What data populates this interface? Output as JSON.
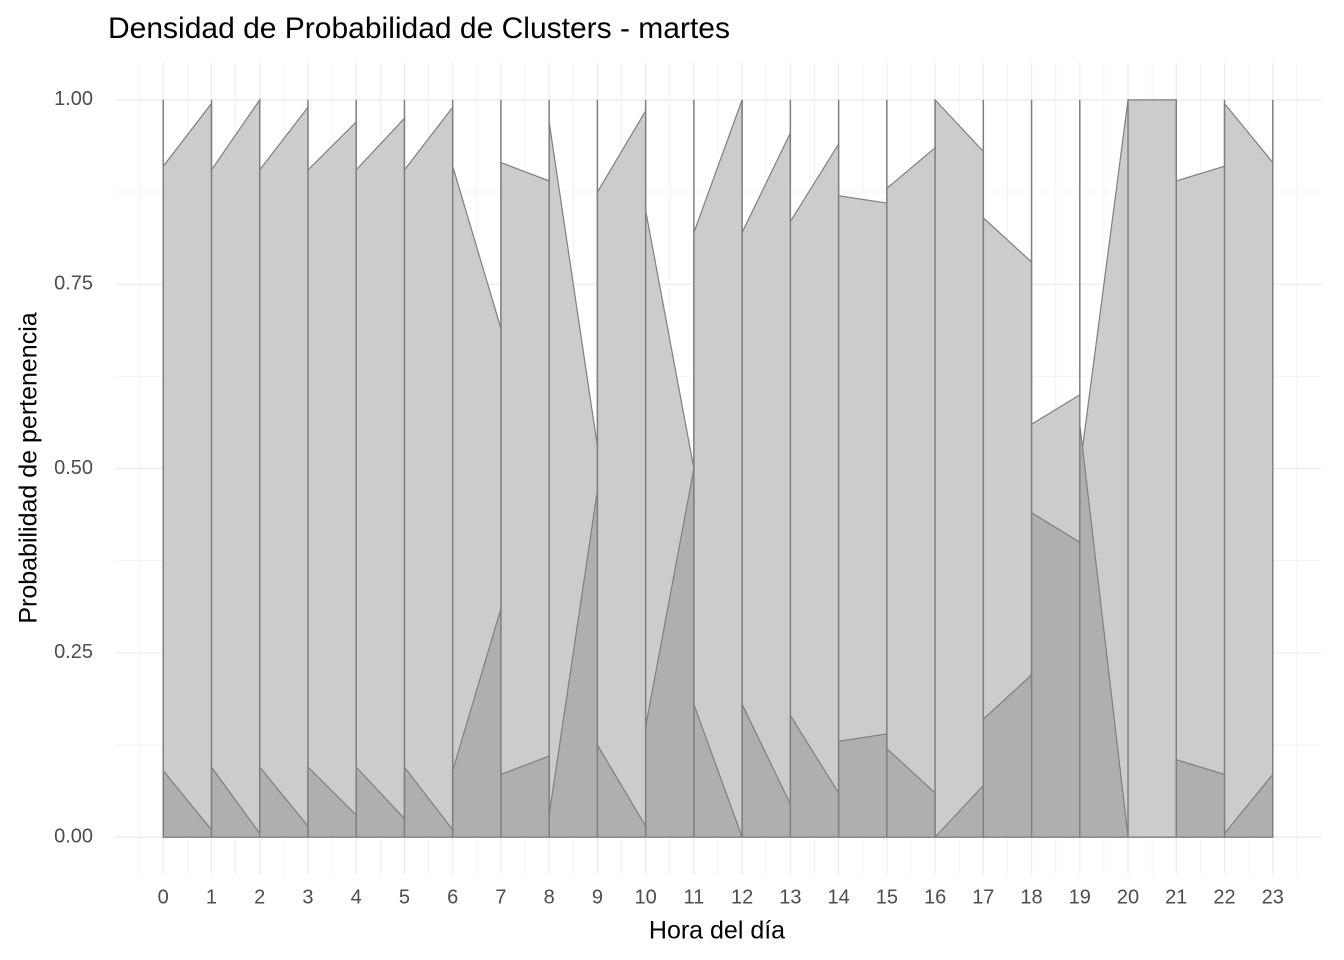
{
  "chart_data": {
    "type": "area",
    "title": "Densidad de Probabilidad de Clusters - martes",
    "x_label": "Hora del día",
    "y_label": "Probabilidad de pertenencia",
    "x": [
      0,
      1,
      1,
      2,
      2,
      3,
      3,
      4,
      4,
      5,
      5,
      6,
      6,
      7,
      7,
      8,
      8,
      9,
      9,
      10,
      10,
      11,
      11,
      12,
      12,
      13,
      13,
      14,
      14,
      15,
      15,
      16,
      16,
      17,
      17,
      18,
      18,
      19,
      19,
      20,
      20,
      21,
      21,
      22,
      22,
      23
    ],
    "series": [
      {
        "color": "#cccccc",
        "values": [
          0.91,
          0.995,
          0.905,
          1.0,
          0.905,
          0.99,
          0.905,
          0.97,
          0.905,
          0.975,
          0.905,
          0.99,
          0.91,
          0.69,
          0.915,
          0.89,
          0.97,
          0.53,
          0.875,
          0.985,
          0.85,
          0.5,
          0.82,
          1.0,
          0.82,
          0.955,
          0.835,
          0.94,
          0.87,
          0.86,
          0.88,
          0.935,
          1.0,
          0.93,
          0.84,
          0.78,
          0.56,
          0.6,
          0.5,
          1.0,
          1.0,
          1.0,
          0.89,
          0.91,
          0.995,
          0.915
        ]
      },
      {
        "color": "#a9a9a9",
        "values": [
          0.09,
          0.01,
          0.095,
          0.005,
          0.095,
          0.015,
          0.095,
          0.03,
          0.095,
          0.025,
          0.095,
          0.01,
          0.09,
          0.31,
          0.085,
          0.11,
          0.03,
          0.47,
          0.125,
          0.015,
          0.15,
          0.5,
          0.18,
          0.0,
          0.18,
          0.045,
          0.165,
          0.06,
          0.13,
          0.14,
          0.12,
          0.06,
          0.0,
          0.07,
          0.16,
          0.22,
          0.44,
          0.4,
          0.56,
          0.0,
          0.0,
          0.0,
          0.105,
          0.085,
          0.005,
          0.085
        ]
      }
    ],
    "xlim": [
      -1,
      24
    ],
    "xticks": [
      0,
      1,
      2,
      3,
      4,
      5,
      6,
      7,
      8,
      9,
      10,
      11,
      12,
      13,
      14,
      15,
      16,
      17,
      18,
      19,
      20,
      21,
      22,
      23
    ],
    "ylim": [
      -0.05,
      1.05
    ],
    "yticks": [
      {
        "value": 0,
        "label": "0.00"
      },
      {
        "value": 0.25,
        "label": "0.25"
      },
      {
        "value": 0.5,
        "label": "0.50"
      },
      {
        "value": 0.75,
        "label": "0.75"
      },
      {
        "value": 1,
        "label": "1.00"
      }
    ],
    "grid": true
  }
}
